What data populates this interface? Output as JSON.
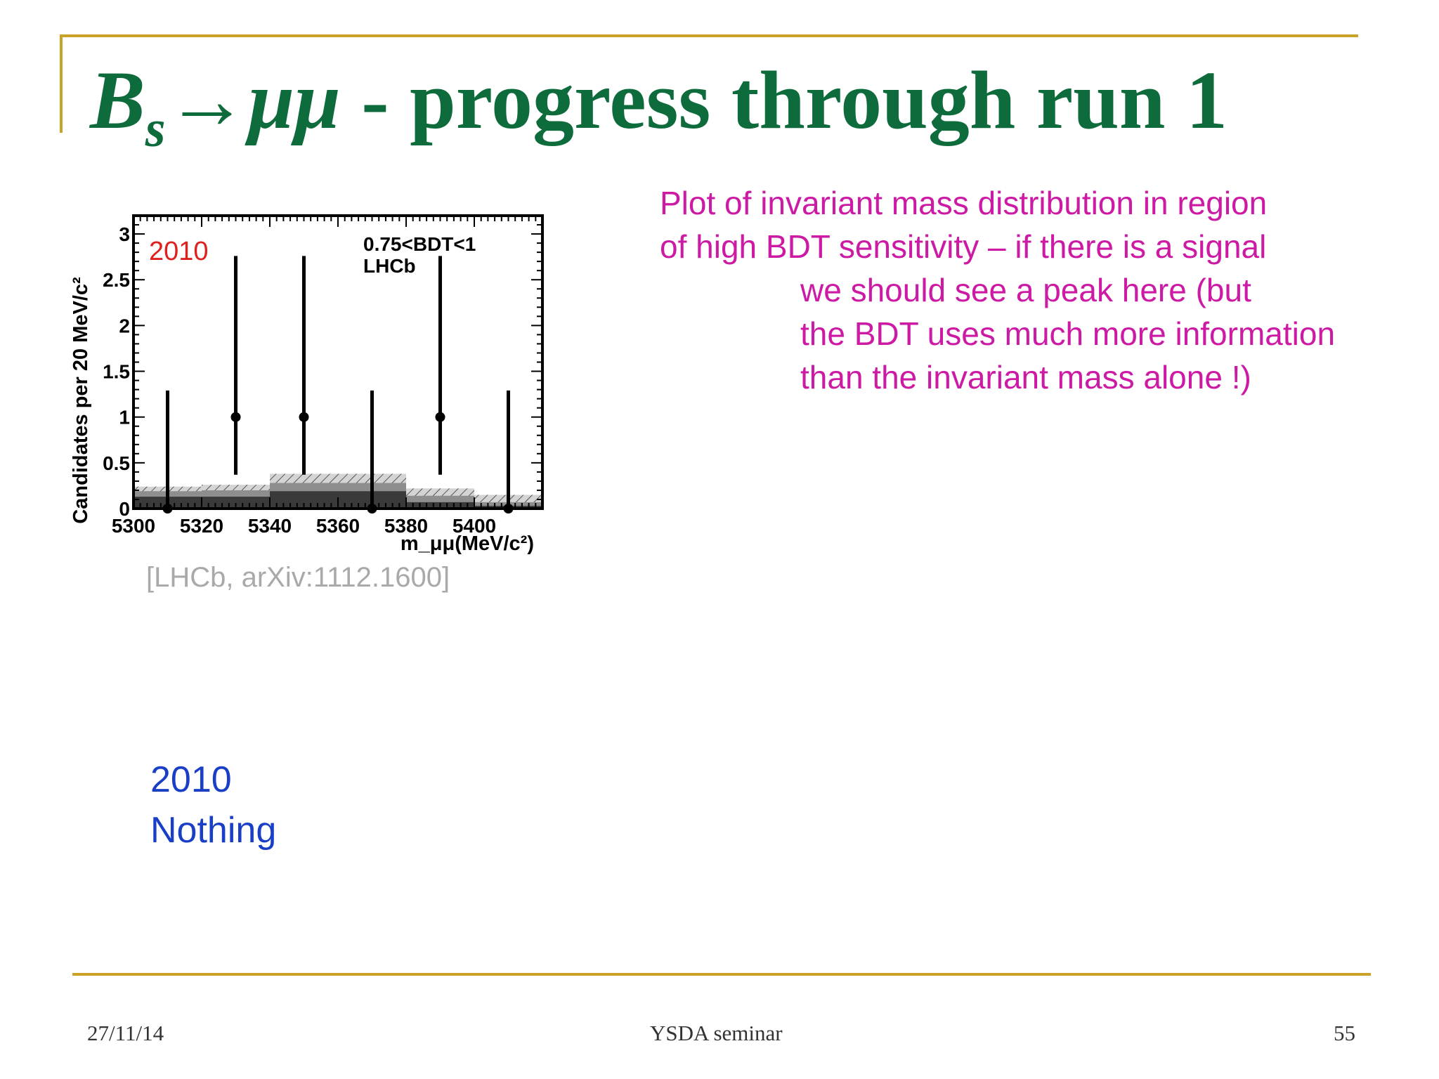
{
  "slide": {
    "title_B": "B",
    "title_sub": "s",
    "title_arrow": "→μμ",
    "title_rest": " - progress through run 1",
    "annotation_line1": "Plot of invariant mass distribution in region",
    "annotation_line2": "of high BDT sensitivity – if there is a signal",
    "annotation_line3": "we should see a peak here  (but",
    "annotation_line4": "the BDT uses much more information",
    "annotation_line5": "than the invariant mass alone !)",
    "reference": "[LHCb, arXiv:1112.1600]",
    "status_year": "2010",
    "status_text": "Nothing",
    "footer_date": "27/11/14",
    "footer_title": "YSDA seminar",
    "footer_page": "55"
  },
  "colors": {
    "title": "#0e6b3c",
    "frame": "#c9a227",
    "annotation": "#cc1aa4",
    "status": "#1a3fc7",
    "year_label": "#e0201c",
    "reference": "#a9a9a9"
  },
  "chart_data": {
    "type": "scatter",
    "xlabel": "m_μμ(MeV/c²)",
    "ylabel": "Candidates per 20 MeV/c²",
    "xlim": [
      5300,
      5420
    ],
    "ylim": [
      0,
      3.2
    ],
    "xticks": [
      "5300",
      "5320",
      "5340",
      "5360",
      "5380",
      "5400"
    ],
    "yticks": [
      "0",
      "0.5",
      "1",
      "1.5",
      "2",
      "2.5",
      "3"
    ],
    "annotations": [
      "2010",
      "0.75<BDT<1",
      "LHCb"
    ],
    "grid": false,
    "series": [
      {
        "x": [
          5310,
          5330,
          5350,
          5370,
          5390,
          5410
        ],
        "y": [
          0,
          1,
          1,
          0,
          1,
          0
        ],
        "yerr_low": [
          0,
          0.63,
          0.63,
          0,
          0.63,
          0
        ],
        "yerr_high": [
          1.29,
          1.76,
          1.76,
          1.29,
          1.76,
          1.29
        ]
      }
    ],
    "background": [
      {
        "xlow": 5300,
        "xhigh": 5320,
        "dark": 0.13,
        "mid": 0.19,
        "total": 0.24
      },
      {
        "xlow": 5320,
        "xhigh": 5340,
        "dark": 0.13,
        "mid": 0.2,
        "total": 0.26
      },
      {
        "xlow": 5340,
        "xhigh": 5360,
        "dark": 0.19,
        "mid": 0.28,
        "total": 0.38
      },
      {
        "xlow": 5360,
        "xhigh": 5380,
        "dark": 0.19,
        "mid": 0.28,
        "total": 0.38
      },
      {
        "xlow": 5380,
        "xhigh": 5400,
        "dark": 0.07,
        "mid": 0.14,
        "total": 0.22
      },
      {
        "xlow": 5400,
        "xhigh": 5420,
        "dark": 0.03,
        "mid": 0.07,
        "total": 0.15
      }
    ]
  }
}
